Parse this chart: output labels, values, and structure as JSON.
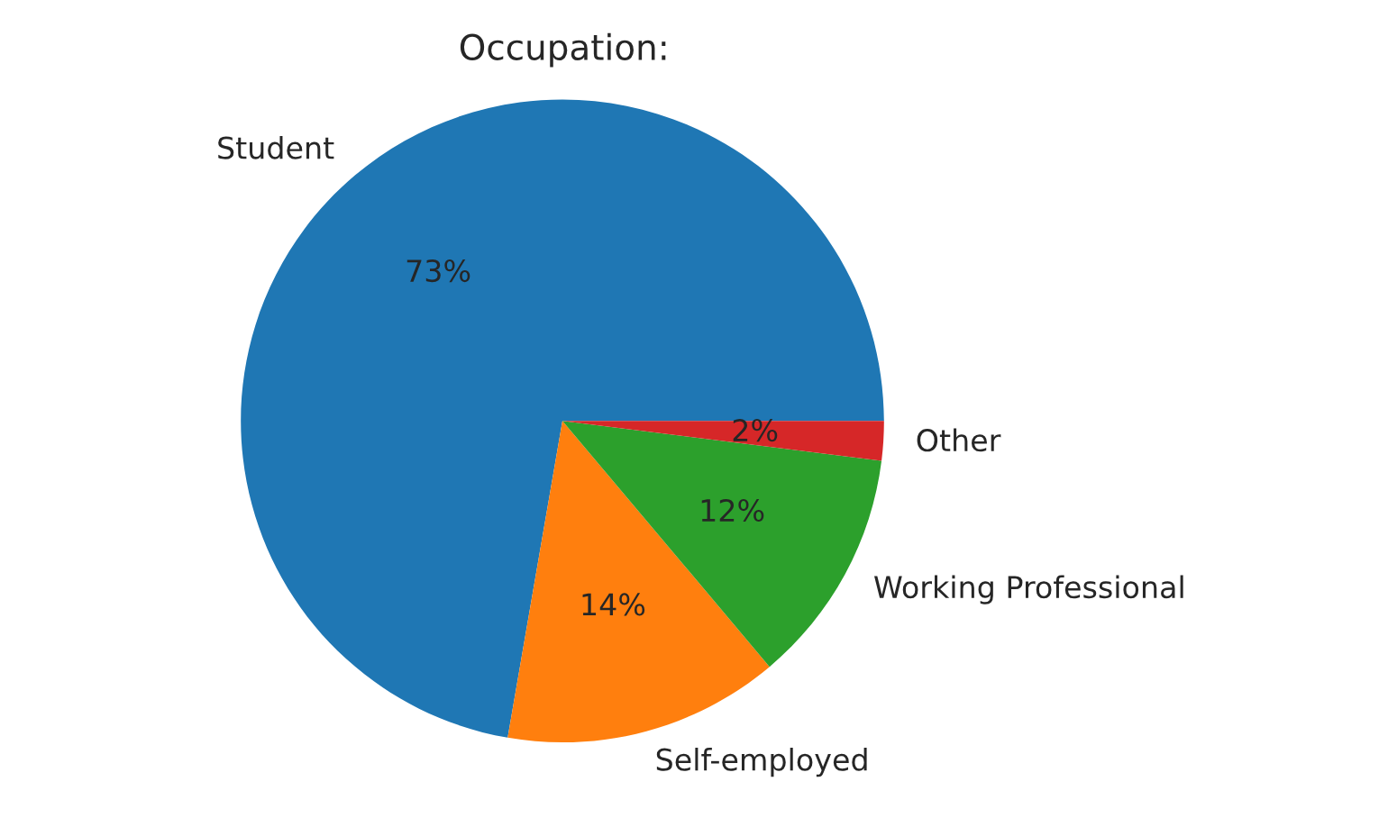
{
  "chart_data": {
    "type": "pie",
    "title": "Occupation:",
    "categories": [
      "Student",
      "Self-employed",
      "Working Professional",
      "Other"
    ],
    "values": [
      73,
      14,
      12,
      2
    ],
    "value_labels": [
      "73%",
      "14%",
      "12%",
      "2%"
    ],
    "colors": [
      "#1f77b4",
      "#ff7f0e",
      "#2ca02c",
      "#d62728"
    ],
    "legend": false
  }
}
